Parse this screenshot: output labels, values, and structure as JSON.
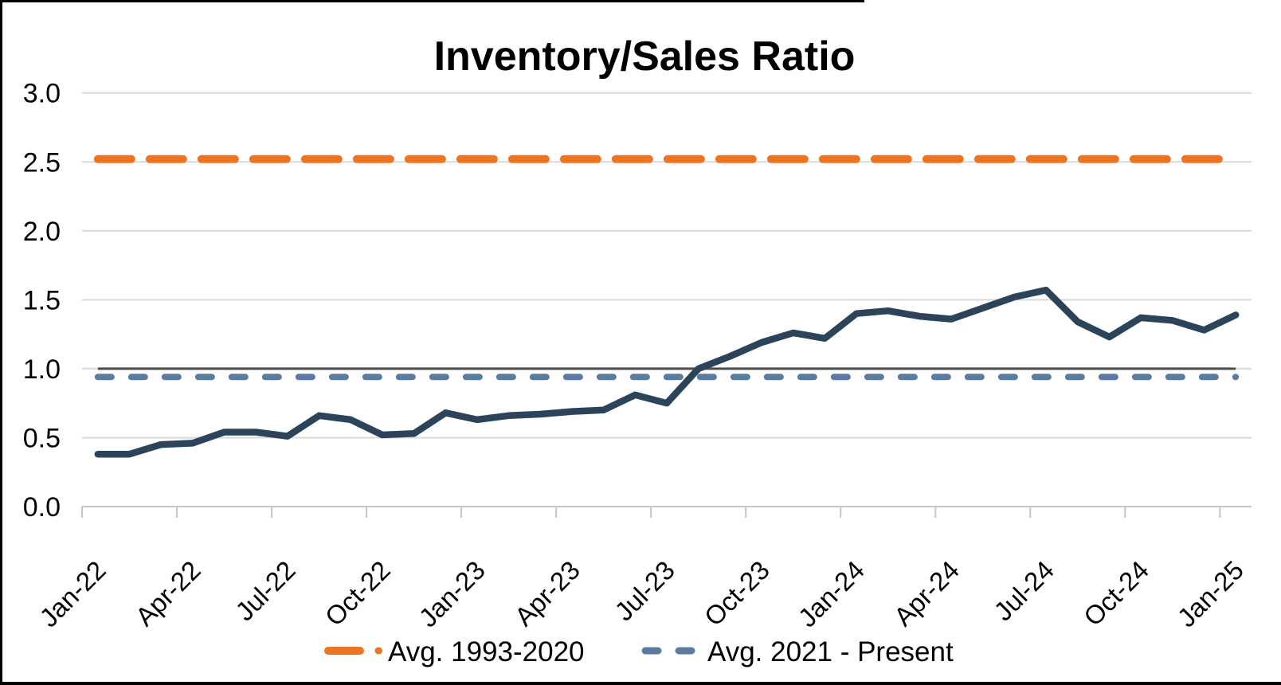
{
  "chart_data": {
    "type": "line",
    "title": "Inventory/Sales Ratio",
    "xlabel": "",
    "ylabel": "",
    "ylim": [
      0.0,
      3.0
    ],
    "y_tick_labels": [
      "3.0",
      "2.5",
      "2.0",
      "1.5",
      "1.0",
      "0.5",
      "0.0"
    ],
    "y_tick_values": [
      3.0,
      2.5,
      2.0,
      1.5,
      1.0,
      0.5,
      0.0
    ],
    "x_tick_labels": [
      "Jan-22",
      "Apr-22",
      "Jul-22",
      "Oct-22",
      "Jan-23",
      "Apr-23",
      "Jul-23",
      "Oct-23",
      "Jan-24",
      "Apr-24",
      "Jul-24",
      "Oct-24",
      "Jan-25"
    ],
    "x": [
      "Jan-22",
      "Feb-22",
      "Mar-22",
      "Apr-22",
      "May-22",
      "Jun-22",
      "Jul-22",
      "Aug-22",
      "Sep-22",
      "Oct-22",
      "Nov-22",
      "Dec-22",
      "Jan-23",
      "Feb-23",
      "Mar-23",
      "Apr-23",
      "May-23",
      "Jun-23",
      "Jul-23",
      "Aug-23",
      "Sep-23",
      "Oct-23",
      "Nov-23",
      "Dec-23",
      "Jan-24",
      "Feb-24",
      "Mar-24",
      "Apr-24",
      "May-24",
      "Jun-24",
      "Jul-24",
      "Aug-24",
      "Sep-24",
      "Oct-24",
      "Nov-24",
      "Dec-24",
      "Jan-25"
    ],
    "series": [
      {
        "name": "Inventory/Sales Ratio (monthly)",
        "style": "solid",
        "values": [
          0.38,
          0.38,
          0.45,
          0.46,
          0.54,
          0.54,
          0.51,
          0.66,
          0.63,
          0.52,
          0.53,
          0.68,
          0.63,
          0.66,
          0.67,
          0.69,
          0.7,
          0.81,
          0.75,
          1.0,
          1.09,
          1.19,
          1.26,
          1.22,
          1.4,
          1.42,
          1.38,
          1.36,
          1.44,
          1.52,
          1.57,
          1.34,
          1.23,
          1.37,
          1.35,
          1.28,
          1.39
        ]
      },
      {
        "name": "Avg. 1993-2020",
        "style": "dashed",
        "constant_value": 2.52
      },
      {
        "name": "Avg. 2021 - Present",
        "style": "dashed",
        "constant_value": 0.94
      }
    ],
    "reference_line_value": 1.0,
    "grid": "horizontal",
    "legend": {
      "position": "bottom",
      "items": [
        {
          "label": "Avg. 1993-2020"
        },
        {
          "label": "Avg. 2021 - Present"
        }
      ]
    },
    "colors": {
      "monthly_line": "#2C4459",
      "avg_hist_line": "#EF7421",
      "avg_recent_line": "#5B7CA0",
      "gridline": "#D9D9D9",
      "axis_line": "#C6C6C6",
      "reference_line": "#4D4D4D",
      "text": "#000000",
      "background": "#FFFFFF",
      "frame_border": "#000000"
    }
  }
}
